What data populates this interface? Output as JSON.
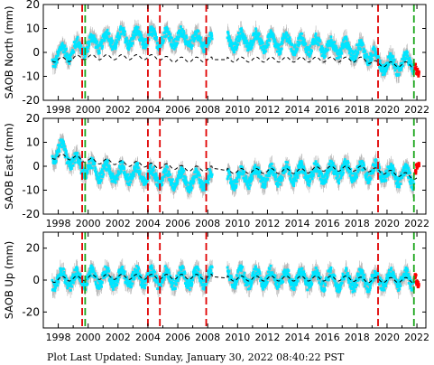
{
  "footer": "Plot Last Updated:   Sunday, January 30, 2022 08:40:22 PST",
  "colors": {
    "data": "#00e5ff",
    "error_bars": "#b4b4b4",
    "model": "#000000",
    "recent": "#ff0000",
    "red_event": "#e00000",
    "green_event": "#1aa51a",
    "frame": "#000000"
  },
  "chart_data": [
    {
      "type": "scatter",
      "ylabel": "SAOB North (mm)",
      "xlim": [
        1997.0,
        2022.6
      ],
      "ylim": [
        -20,
        20
      ],
      "yticks": [
        -20,
        -10,
        0,
        10,
        20
      ],
      "xticks": [
        1998,
        2000,
        2002,
        2004,
        2006,
        2008,
        2010,
        2012,
        2014,
        2016,
        2018,
        2020,
        2022
      ],
      "vlines_red": [
        1999.6,
        2004.0,
        2004.8,
        2007.9,
        2019.4
      ],
      "vlines_green": [
        1999.8,
        2021.8
      ],
      "gaps": [
        [
          2008.3,
          2009.3
        ]
      ],
      "series": [
        {
          "x": [
            1997.6,
            1998.0,
            1998.5,
            1999.0,
            1999.5,
            2000.0,
            2000.5,
            2001.0,
            2001.5,
            2002.0,
            2002.5,
            2003.0,
            2003.5,
            2004.0,
            2004.5,
            2005.0,
            2005.5,
            2006.0,
            2006.5,
            2007.0,
            2007.5,
            2008.0,
            2008.3,
            2009.3,
            2009.5,
            2010.0,
            2010.5,
            2011.0,
            2011.5,
            2012.0,
            2012.5,
            2013.0,
            2013.5,
            2014.0,
            2014.5,
            2015.0,
            2015.5,
            2016.0,
            2016.5,
            2017.0,
            2017.5,
            2018.0,
            2018.5,
            2019.0,
            2019.5,
            2020.0,
            2020.5,
            2021.0,
            2021.5,
            2021.8
          ],
          "y": [
            -2,
            -1,
            0,
            1,
            2,
            3,
            4,
            5,
            5,
            6,
            6,
            6,
            6,
            6,
            6,
            6,
            6,
            6,
            6,
            5,
            5,
            5,
            4,
            4,
            4,
            5,
            5,
            5,
            5,
            4,
            4,
            4,
            4,
            3,
            3,
            3,
            3,
            2,
            2,
            2,
            1,
            1,
            0,
            -1,
            -4,
            -5,
            -5,
            -5,
            -4,
            -4
          ]
        }
      ],
      "recent": {
        "x": [
          2021.9,
          2022.0,
          2022.1
        ],
        "y": [
          -6,
          -8,
          -9
        ]
      },
      "model": {
        "x": [
          1997.6,
          1998.5,
          1999.5,
          2000.5,
          2001.5,
          2002.5,
          2003.5,
          2004.5,
          2005.5,
          2006.5,
          2007.5,
          2008.5,
          2009.5,
          2010.5,
          2011.5,
          2012.5,
          2013.5,
          2014.5,
          2015.5,
          2016.5,
          2017.5,
          2018.5,
          2019.5,
          2020.5,
          2021.5,
          2022.1
        ],
        "y": [
          -3,
          -3,
          -2,
          -2,
          -2,
          -2,
          -2,
          -2,
          -3,
          -3,
          -3,
          -3,
          -3,
          -3,
          -3,
          -3,
          -3,
          -3,
          -3,
          -3,
          -3,
          -3,
          -5,
          -5,
          -5,
          -6
        ]
      }
    },
    {
      "type": "scatter",
      "ylabel": "SAOB East (mm)",
      "xlim": [
        1997.0,
        2022.6
      ],
      "ylim": [
        -20,
        20
      ],
      "yticks": [
        -20,
        -10,
        0,
        10,
        20
      ],
      "xticks": [
        1998,
        2000,
        2002,
        2004,
        2006,
        2008,
        2010,
        2012,
        2014,
        2016,
        2018,
        2020,
        2022
      ],
      "vlines_red": [
        1999.6,
        2004.0,
        2004.8,
        2007.9,
        2019.4
      ],
      "vlines_green": [
        1999.8,
        2021.8
      ],
      "gaps": [
        [
          2008.3,
          2009.3
        ]
      ],
      "series": [
        {
          "x": [
            1997.6,
            1998.0,
            1998.5,
            1999.0,
            1999.5,
            2000.0,
            2000.5,
            2001.0,
            2001.5,
            2002.0,
            2002.5,
            2003.0,
            2003.5,
            2004.0,
            2004.5,
            2005.0,
            2005.5,
            2006.0,
            2006.5,
            2007.0,
            2007.5,
            2008.0,
            2008.3,
            2009.3,
            2009.5,
            2010.0,
            2010.5,
            2011.0,
            2011.5,
            2012.0,
            2012.5,
            2013.0,
            2013.5,
            2014.0,
            2014.5,
            2015.0,
            2015.5,
            2016.0,
            2016.5,
            2017.0,
            2017.5,
            2018.0,
            2018.5,
            2019.0,
            2019.5,
            2020.0,
            2020.5,
            2021.0,
            2021.5,
            2021.8
          ],
          "y": [
            5,
            7,
            5,
            2,
            0,
            -1,
            -2,
            -2,
            -3,
            -3,
            -3,
            -3,
            -4,
            -4,
            -4,
            -5,
            -5,
            -5,
            -6,
            -6,
            -6,
            -6,
            -5,
            -6,
            -5,
            -5,
            -5,
            -4,
            -4,
            -4,
            -4,
            -3,
            -3,
            -3,
            -3,
            -3,
            -3,
            -3,
            -2,
            -2,
            -2,
            -2,
            -2,
            -2,
            -2,
            -3,
            -4,
            -4,
            -4,
            -5
          ]
        }
      ],
      "recent": {
        "x": [
          2021.9,
          2022.0,
          2022.1
        ],
        "y": [
          -2,
          0,
          1
        ]
      },
      "model": {
        "x": [
          1997.6,
          1998.5,
          1999.5,
          2000.5,
          2001.5,
          2002.5,
          2003.5,
          2004.5,
          2005.5,
          2006.5,
          2007.5,
          2008.5,
          2009.5,
          2010.5,
          2011.5,
          2012.5,
          2013.5,
          2014.5,
          2015.5,
          2016.5,
          2017.5,
          2018.5,
          2019.5,
          2020.5,
          2021.5,
          2022.1
        ],
        "y": [
          4,
          4,
          3,
          2,
          2,
          1,
          1,
          0,
          0,
          -1,
          -1,
          -1,
          -2,
          -2,
          -2,
          -2,
          -2,
          -2,
          -1,
          -1,
          -1,
          -1,
          -2,
          -3,
          -4,
          -5
        ]
      }
    },
    {
      "type": "scatter",
      "ylabel": "SAOB Up (mm)",
      "xlim": [
        1997.0,
        2022.6
      ],
      "ylim": [
        -30,
        30
      ],
      "yticks": [
        -20,
        0,
        20
      ],
      "xticks": [
        1998,
        2000,
        2002,
        2004,
        2006,
        2008,
        2010,
        2012,
        2014,
        2016,
        2018,
        2020,
        2022
      ],
      "vlines_red": [
        1999.6,
        2004.0,
        2004.8,
        2007.9,
        2019.4
      ],
      "vlines_green": [
        1999.8,
        2021.8
      ],
      "gaps": [
        [
          2008.3,
          2009.3
        ]
      ],
      "series": [
        {
          "x": [
            1997.6,
            1998.0,
            1998.5,
            1999.0,
            1999.5,
            2000.0,
            2000.5,
            2001.0,
            2001.5,
            2002.0,
            2002.5,
            2003.0,
            2003.5,
            2004.0,
            2004.5,
            2005.0,
            2005.5,
            2006.0,
            2006.5,
            2007.0,
            2007.5,
            2008.0,
            2008.3,
            2009.3,
            2009.5,
            2010.0,
            2010.5,
            2011.0,
            2011.5,
            2012.0,
            2012.5,
            2013.0,
            2013.5,
            2014.0,
            2014.5,
            2015.0,
            2015.5,
            2016.0,
            2016.5,
            2017.0,
            2017.5,
            2018.0,
            2018.5,
            2019.0,
            2019.5,
            2020.0,
            2020.5,
            2021.0,
            2021.5,
            2021.8
          ],
          "y": [
            0,
            1,
            0,
            1,
            0,
            2,
            1,
            2,
            1,
            2,
            1,
            2,
            1,
            2,
            1,
            2,
            1,
            2,
            1,
            2,
            1,
            2,
            1,
            1,
            1,
            2,
            1,
            2,
            1,
            2,
            1,
            1,
            1,
            1,
            1,
            1,
            0,
            1,
            0,
            0,
            0,
            0,
            0,
            0,
            0,
            1,
            0,
            1,
            0,
            0
          ]
        }
      ],
      "recent": {
        "x": [
          2021.9,
          2022.0,
          2022.1
        ],
        "y": [
          2,
          -2,
          -3
        ]
      },
      "model": {
        "x": [
          1997.6,
          1998.5,
          1999.5,
          2000.5,
          2001.5,
          2002.5,
          2003.5,
          2004.5,
          2005.5,
          2006.5,
          2007.5,
          2008.5,
          2009.5,
          2010.5,
          2011.5,
          2012.5,
          2013.5,
          2014.5,
          2015.5,
          2016.5,
          2017.5,
          2018.5,
          2019.5,
          2020.5,
          2021.5,
          2022.1
        ],
        "y": [
          0,
          1,
          1,
          2,
          2,
          2,
          2,
          2,
          2,
          2,
          2,
          2,
          1,
          1,
          1,
          1,
          1,
          1,
          1,
          1,
          1,
          0,
          0,
          0,
          0,
          0
        ]
      }
    }
  ]
}
